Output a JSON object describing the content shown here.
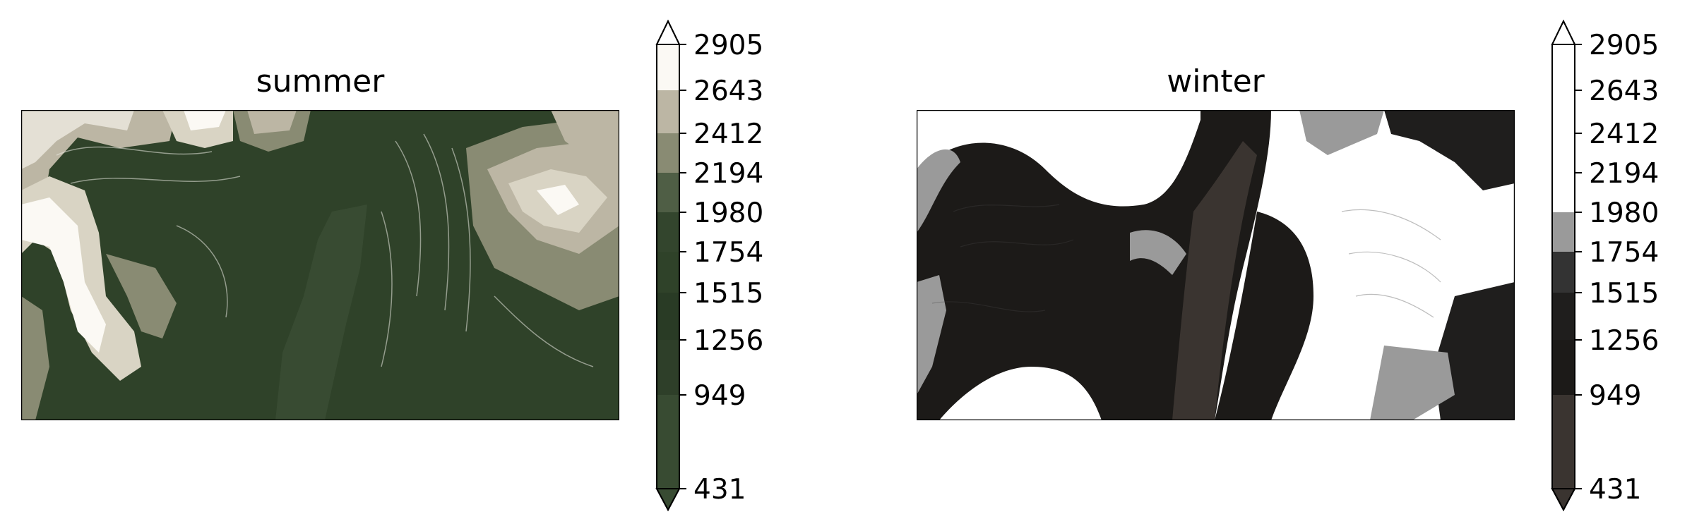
{
  "chart_data": [
    {
      "type": "heatmap",
      "title": "summer",
      "xlabel": "",
      "ylabel": "",
      "colorbar": {
        "levels": [
          431,
          949,
          1256,
          1515,
          1754,
          1980,
          2194,
          2412,
          2643,
          2905
        ],
        "tick_labels": [
          "431",
          "949",
          "1256",
          "1515",
          "1754",
          "1980",
          "2194",
          "2412",
          "2643",
          "2905"
        ],
        "extend": "both",
        "band_colors": [
          "#384b32",
          "#2e3f29",
          "#293b25",
          "#2f4229",
          "#33452d",
          "#4f5e45",
          "#898b73",
          "#bcb6a4",
          "#fbf9f4"
        ],
        "under_color": "#384b32",
        "over_color": "#ffffff"
      }
    },
    {
      "type": "heatmap",
      "title": "winter",
      "xlabel": "",
      "ylabel": "",
      "colorbar": {
        "levels": [
          431,
          949,
          1256,
          1515,
          1754,
          1980,
          2194,
          2412,
          2643,
          2905
        ],
        "tick_labels": [
          "431",
          "949",
          "1256",
          "1515",
          "1754",
          "1980",
          "2194",
          "2412",
          "2643",
          "2905"
        ],
        "extend": "both",
        "band_colors": [
          "#3a3430",
          "#1c1a18",
          "#1f1e1d",
          "#333333",
          "#9a9a9a",
          "#ffffff",
          "#ffffff",
          "#ffffff",
          "#ffffff"
        ],
        "under_color": "#3a3430",
        "over_color": "#ffffff"
      }
    }
  ]
}
